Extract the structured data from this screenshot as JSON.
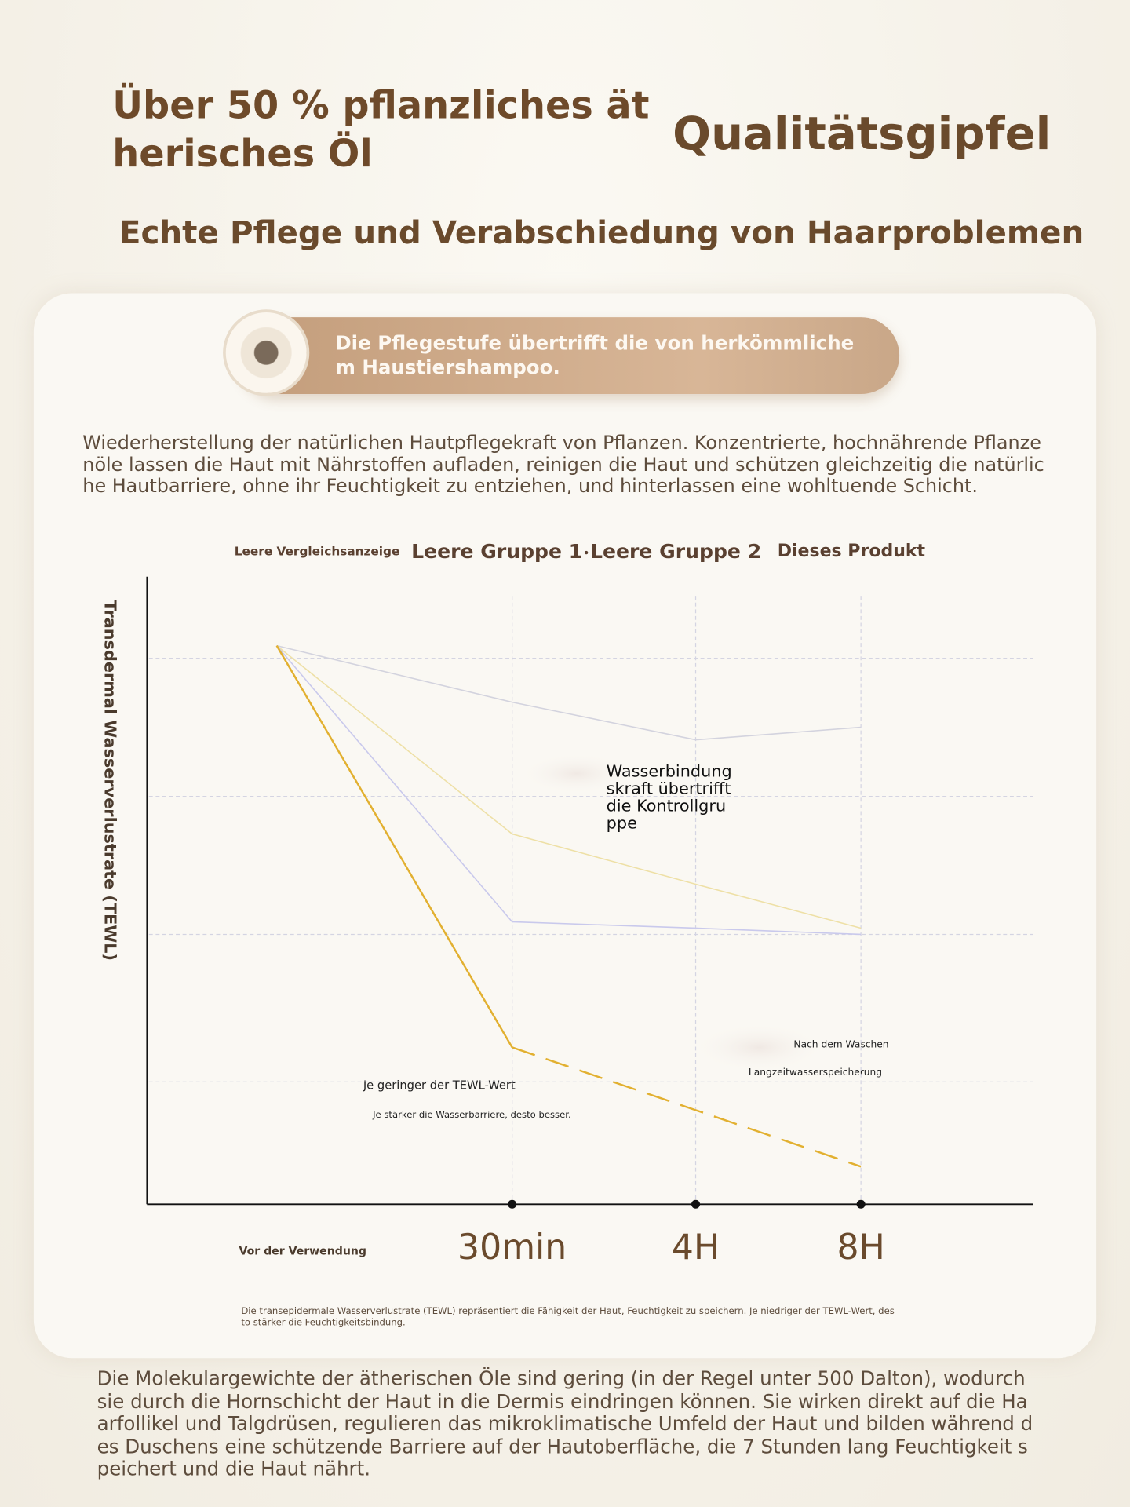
{
  "header": {
    "title": "Über 50 % pflanzliches ätherisches Öl",
    "badge_title": "Qualitätsgipfel",
    "subtitle": "Echte Pflege und Verabschiedung von Haarproblemen"
  },
  "badge": {
    "text": "Die Pflegestufe übertrifft die von herkömmlichem Haustiershampoo."
  },
  "intro": "Wiederherstellung der natürlichen Hautpflegekraft von Pflanzen. Konzentrierte, hochnährende Pflanzenöle lassen die Haut mit Nährstoffen aufladen, reinigen die Haut und schützen gleichzeitig die natürliche Hautbarriere, ohne ihr Feuchtigkeit zu entziehen, und hinterlassen eine wohltuende Schicht.",
  "chart_data": {
    "type": "line",
    "y_label": "Transdermal Wasserverlustrate (TEWL)",
    "categories": [
      "Vor der Verwendung",
      "30min",
      "4H",
      "8H"
    ],
    "ylim": [
      0,
      100
    ],
    "grid": true,
    "series": [
      {
        "name": "Leere Vergleichsanzeige",
        "color": "#d3d3de",
        "values": [
          89,
          80,
          74,
          76
        ]
      },
      {
        "name": "Leere Gruppe 1",
        "color": "#eee0a6",
        "values": [
          89,
          59,
          51,
          44
        ]
      },
      {
        "name": "Leere Gruppe 2",
        "color": "#c9c9ec",
        "values": [
          89,
          45,
          44,
          43
        ]
      },
      {
        "name": "Dieses Produkt",
        "color": "#e2b030",
        "values": [
          89,
          25,
          15,
          6
        ],
        "dashed_from": 1
      }
    ],
    "annotations": [
      "Wasserbindungskraft übertrifft die Kontrollgruppe",
      "Nach dem Waschen",
      "Langzeitwasserspeicherung",
      "Je geringer der TEWL-Wert",
      "Je stärker die Wasserbarriere, desto besser."
    ],
    "footnote": "Die transepidermale Wasserverlustrate (TEWL) repräsentiert die Fähigkeit der Haut, Feuchtigkeit zu speichern. Je niedriger der TEWL-Wert, desto stärker die Feuchtigkeitsbindung."
  },
  "body_text": "Die Molekulargewichte der ätherischen Öle sind gering (in der Regel unter 500 Dalton), wodurch sie durch die Hornschicht der Haut in die Dermis eindringen können. Sie wirken direkt auf die Haarfollikel und Talgdrüsen, regulieren das mikroklimatische Umfeld der Haut und bilden während des Duschens eine schützende Barriere auf der Hautoberfläche, die 7 Stunden lang Feuchtigkeit speichert und die Haut nährt."
}
